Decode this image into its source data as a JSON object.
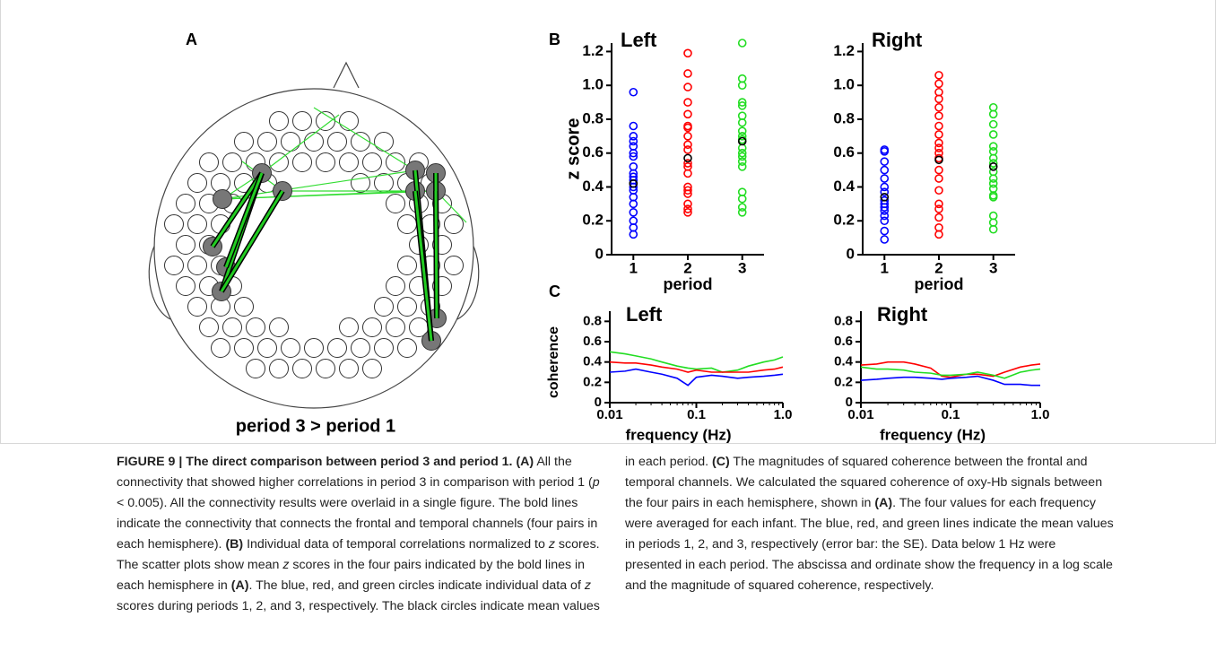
{
  "panel_labels": [
    "A",
    "B",
    "C"
  ],
  "diagram": {
    "caption": "period 3 > period 1"
  },
  "chart_data": [
    {
      "type": "scatter",
      "title": "Left",
      "ylabel": "z score",
      "xlabel": "period",
      "xlim": [
        0.6,
        3.4
      ],
      "ylim": [
        0,
        1.25
      ],
      "xticks": [
        1,
        2,
        3
      ],
      "yticks": [
        0,
        0.2,
        0.4,
        0.6,
        0.8,
        {
          "value": 1,
          "label": "1.0"
        },
        1.2
      ],
      "series": [
        {
          "color": "#0000ff",
          "x": [
            1,
            1,
            1,
            1,
            1,
            1,
            1,
            1,
            1,
            1,
            1,
            1,
            1,
            1,
            1,
            1,
            1,
            1,
            1,
            1
          ],
          "values": [
            0.96,
            0.76,
            0.7,
            0.67,
            0.64,
            0.6,
            0.58,
            0.52,
            0.48,
            0.46,
            0.44,
            0.42,
            0.4,
            0.38,
            0.34,
            0.3,
            0.25,
            0.2,
            0.16,
            0.12
          ]
        },
        {
          "color": "#ff0000",
          "x": [
            2,
            2,
            2,
            2,
            2,
            2,
            2,
            2,
            2,
            2,
            2,
            2,
            2,
            2,
            2,
            2,
            2,
            2,
            2
          ],
          "values": [
            1.19,
            1.07,
            0.99,
            0.9,
            0.83,
            0.76,
            0.75,
            0.7,
            0.65,
            0.62,
            0.54,
            0.52,
            0.48,
            0.4,
            0.38,
            0.36,
            0.3,
            0.27,
            0.25
          ]
        },
        {
          "color": "#22dd22",
          "x": [
            3,
            3,
            3,
            3,
            3,
            3,
            3,
            3,
            3,
            3,
            3,
            3,
            3,
            3,
            3,
            3,
            3,
            3,
            3
          ],
          "values": [
            1.25,
            1.04,
            1.0,
            0.9,
            0.88,
            0.82,
            0.78,
            0.73,
            0.7,
            0.68,
            0.63,
            0.6,
            0.58,
            0.55,
            0.52,
            0.37,
            0.33,
            0.28,
            0.25
          ]
        },
        {
          "color": "#000000",
          "x": [
            1,
            2,
            3
          ],
          "values": [
            0.42,
            0.57,
            0.67
          ]
        }
      ]
    },
    {
      "type": "scatter",
      "title": "Right",
      "xlabel": "period",
      "xlim": [
        0.6,
        3.4
      ],
      "ylim": [
        0,
        1.25
      ],
      "xticks": [
        1,
        2,
        3
      ],
      "yticks": [
        0,
        0.2,
        0.4,
        0.6,
        0.8,
        {
          "value": 1,
          "label": "1.0"
        },
        1.2
      ],
      "series": [
        {
          "color": "#0000ff",
          "x": [
            1,
            1,
            1,
            1,
            1,
            1,
            1,
            1,
            1,
            1,
            1,
            1,
            1,
            1,
            1
          ],
          "values": [
            0.62,
            0.61,
            0.55,
            0.5,
            0.45,
            0.4,
            0.37,
            0.32,
            0.3,
            0.28,
            0.26,
            0.23,
            0.2,
            0.14,
            0.09
          ]
        },
        {
          "color": "#ff0000",
          "x": [
            2,
            2,
            2,
            2,
            2,
            2,
            2,
            2,
            2,
            2,
            2,
            2,
            2,
            2,
            2,
            2,
            2,
            2,
            2,
            2
          ],
          "values": [
            1.06,
            1.01,
            0.96,
            0.92,
            0.87,
            0.82,
            0.76,
            0.71,
            0.66,
            0.63,
            0.6,
            0.57,
            0.5,
            0.45,
            0.38,
            0.3,
            0.27,
            0.22,
            0.16,
            0.12
          ]
        },
        {
          "color": "#22dd22",
          "x": [
            3,
            3,
            3,
            3,
            3,
            3,
            3,
            3,
            3,
            3,
            3,
            3,
            3,
            3,
            3,
            3,
            3
          ],
          "values": [
            0.87,
            0.83,
            0.77,
            0.71,
            0.64,
            0.61,
            0.57,
            0.54,
            0.49,
            0.45,
            0.42,
            0.39,
            0.35,
            0.34,
            0.23,
            0.19,
            0.15
          ]
        },
        {
          "color": "#000000",
          "x": [
            1,
            2,
            3
          ],
          "values": [
            0.34,
            0.56,
            0.52
          ]
        }
      ]
    },
    {
      "type": "line",
      "title": "Left",
      "ylabel": "coherence",
      "xlabel": "frequency (Hz)",
      "log_x": true,
      "xlim": [
        0.01,
        1
      ],
      "ylim": [
        0,
        0.9
      ],
      "xticks": [
        0.01,
        0.1,
        {
          "value": 1,
          "label": "1.0"
        }
      ],
      "yticks": [
        0,
        0.2,
        0.4,
        0.6,
        0.8
      ],
      "x": [
        0.01,
        0.015,
        0.02,
        0.03,
        0.04,
        0.06,
        0.08,
        0.1,
        0.15,
        0.2,
        0.3,
        0.4,
        0.6,
        0.8,
        1
      ],
      "series": [
        {
          "color": "#22dd22",
          "values": [
            0.5,
            0.48,
            0.46,
            0.43,
            0.4,
            0.36,
            0.34,
            0.33,
            0.34,
            0.3,
            0.32,
            0.36,
            0.4,
            0.42,
            0.45
          ]
        },
        {
          "color": "#ff0000",
          "values": [
            0.4,
            0.39,
            0.39,
            0.37,
            0.35,
            0.33,
            0.3,
            0.32,
            0.3,
            0.3,
            0.3,
            0.3,
            0.32,
            0.33,
            0.35
          ]
        },
        {
          "color": "#0000ff",
          "values": [
            0.3,
            0.31,
            0.33,
            0.3,
            0.28,
            0.24,
            0.17,
            0.25,
            0.27,
            0.26,
            0.24,
            0.25,
            0.26,
            0.27,
            0.28
          ]
        }
      ]
    },
    {
      "type": "line",
      "title": "Right",
      "xlabel": "frequency (Hz)",
      "log_x": true,
      "xlim": [
        0.01,
        1
      ],
      "ylim": [
        0,
        0.9
      ],
      "xticks": [
        0.01,
        0.1,
        {
          "value": 1,
          "label": "1.0"
        }
      ],
      "yticks": [
        0,
        0.2,
        0.4,
        0.6,
        0.8
      ],
      "x": [
        0.01,
        0.015,
        0.02,
        0.03,
        0.04,
        0.06,
        0.08,
        0.1,
        0.15,
        0.2,
        0.3,
        0.4,
        0.6,
        0.8,
        1
      ],
      "series": [
        {
          "color": "#ff0000",
          "values": [
            0.37,
            0.38,
            0.4,
            0.4,
            0.38,
            0.34,
            0.26,
            0.25,
            0.28,
            0.28,
            0.26,
            0.3,
            0.35,
            0.37,
            0.38
          ]
        },
        {
          "color": "#22dd22",
          "values": [
            0.35,
            0.33,
            0.33,
            0.32,
            0.3,
            0.29,
            0.27,
            0.27,
            0.28,
            0.3,
            0.27,
            0.24,
            0.3,
            0.32,
            0.33
          ]
        },
        {
          "color": "#0000ff",
          "values": [
            0.22,
            0.23,
            0.24,
            0.25,
            0.25,
            0.24,
            0.23,
            0.24,
            0.25,
            0.26,
            0.22,
            0.18,
            0.18,
            0.17,
            0.17
          ]
        }
      ]
    }
  ],
  "caption": {
    "parts": [
      {
        "bold": "FIGURE 9 | The direct comparison between period 3 and period 1. "
      },
      {
        "bold": "(A)"
      },
      " All the connectivity that showed higher correlations in period 3 in comparison with period 1 (",
      {
        "italic": "p"
      },
      " < 0.005). All the connectivity results were overlaid in a single figure. The bold lines indicate the connectivity that connects the frontal and temporal channels (four pairs in each hemisphere). ",
      {
        "bold": "(B)"
      },
      " Individual data of temporal correlations normalized to ",
      {
        "italic": "z"
      },
      " scores. The scatter plots show mean ",
      {
        "italic": "z"
      },
      " scores in the four pairs indicated by the bold lines in each hemisphere in ",
      {
        "bold": "(A)"
      },
      ". The blue, red, and green circles indicate individual data of ",
      {
        "italic": "z"
      },
      " scores during periods 1, 2, and 3, respectively. The black circles indicate mean values in each period. ",
      {
        "bold": "(C)"
      },
      " The magnitudes of squared coherence between the frontal and temporal channels. We calculated the squared coherence of oxy-Hb signals between the four pairs in each hemisphere, shown in ",
      {
        "bold": "(A)"
      },
      ". The four values for each frequency were averaged for each infant. The blue, red, and green lines indicate the mean values in periods 1, 2, and 3, respectively (error bar: the SE). Data below 1 Hz were presented in each period. The abscissa and ordinate show the frequency in a log scale and the magnitude of squared coherence, respectively."
    ]
  }
}
